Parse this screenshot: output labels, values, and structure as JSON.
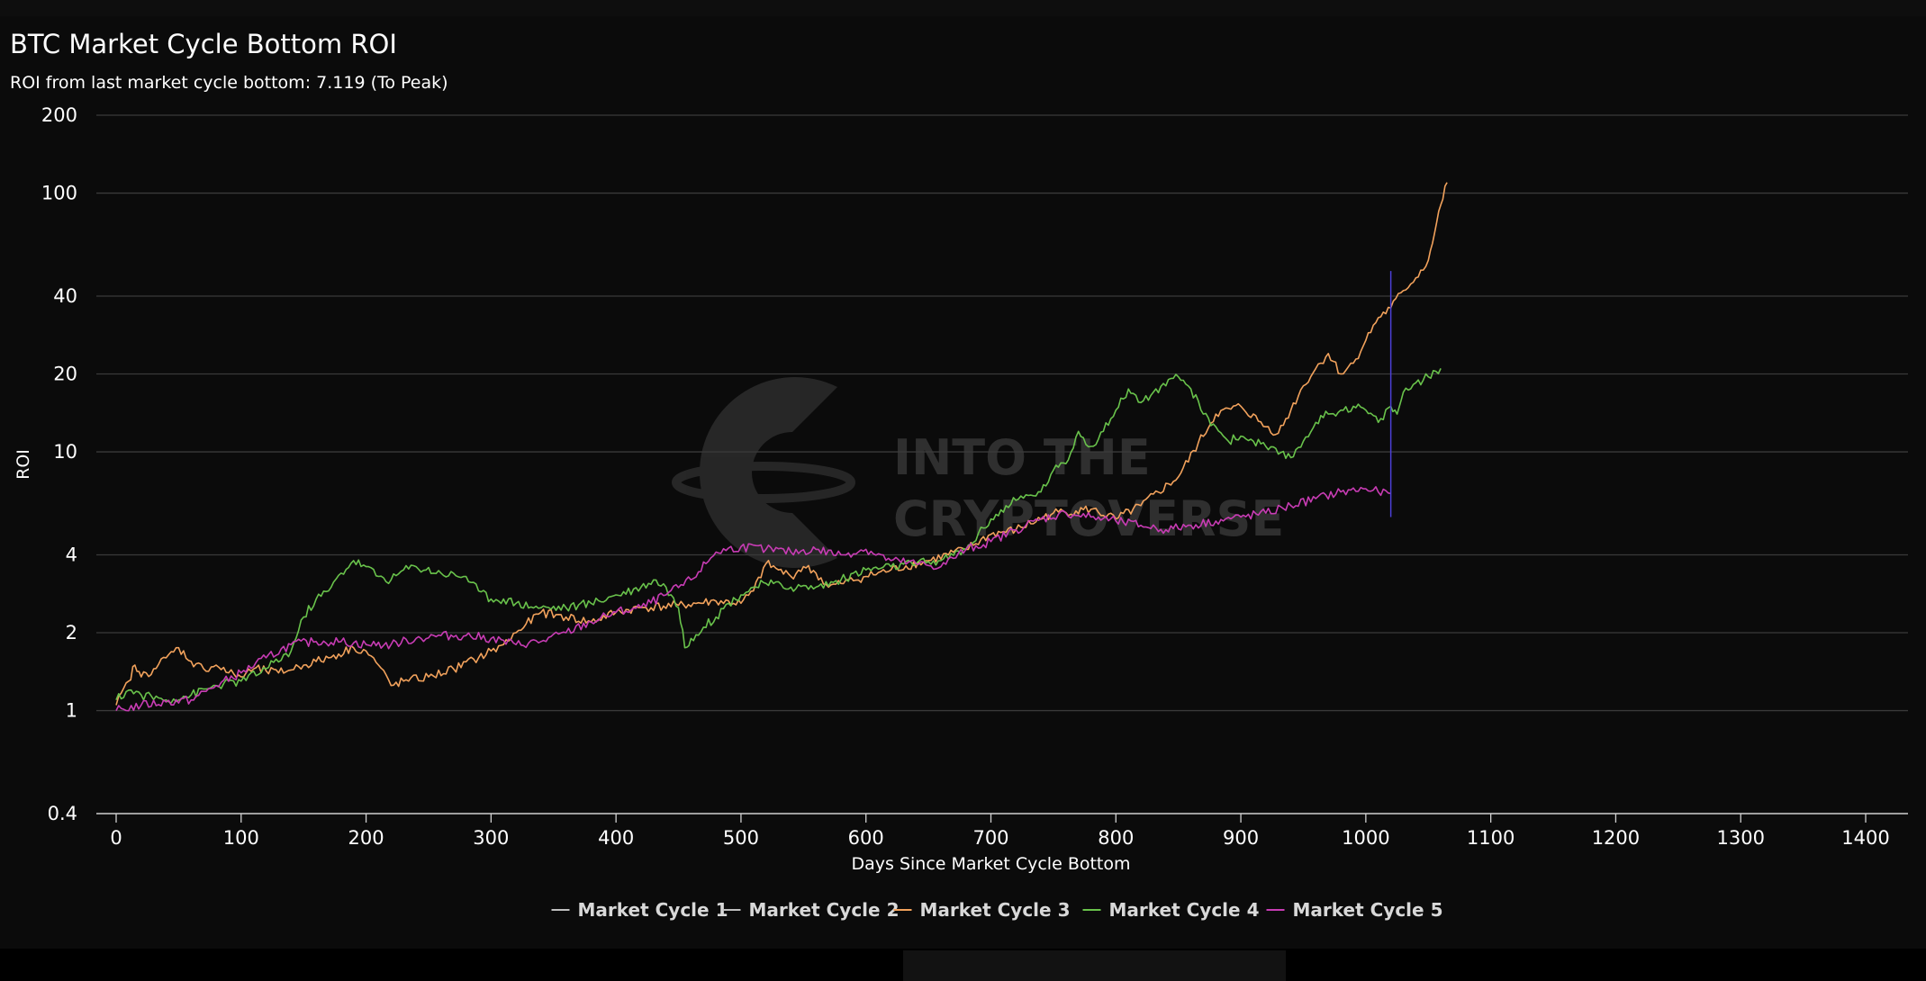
{
  "chart_data": {
    "type": "line",
    "title": "BTC Market Cycle Bottom ROI",
    "subtitle": "ROI from last market cycle bottom: 7.119 (To Peak)",
    "xlabel": "Days Since Market Cycle Bottom",
    "ylabel": "ROI",
    "xlim": [
      0,
      1400
    ],
    "ylim": [
      0.4,
      200
    ],
    "y_scale": "log",
    "x_ticks": [
      "0",
      "100",
      "200",
      "300",
      "400",
      "500",
      "600",
      "700",
      "800",
      "900",
      "1000",
      "1100",
      "1200",
      "1300",
      "1400"
    ],
    "y_ticks": [
      "0.4",
      "1",
      "2",
      "4",
      "10",
      "20",
      "40",
      "100",
      "200"
    ],
    "grid": "horizontal",
    "legend_position": "bottom",
    "marker_day": 1020,
    "marker_color": "#4b3fd8",
    "watermark": "INTO THE CRYPTOVERSE",
    "series": [
      {
        "name": "Market Cycle 1",
        "color": "#bfbfbf",
        "x": [],
        "y": []
      },
      {
        "name": "Market Cycle 2",
        "color": "#bfbfbf",
        "x": [],
        "y": []
      },
      {
        "name": "Market Cycle 3",
        "color": "#f2a25c",
        "x": [
          0,
          10,
          15,
          20,
          30,
          40,
          50,
          60,
          70,
          80,
          90,
          100,
          110,
          130,
          150,
          170,
          190,
          200,
          210,
          220,
          230,
          250,
          270,
          290,
          300,
          310,
          320,
          340,
          360,
          380,
          400,
          420,
          450,
          480,
          500,
          510,
          520,
          530,
          540,
          550,
          560,
          570,
          580,
          600,
          620,
          650,
          680,
          700,
          720,
          750,
          780,
          800,
          820,
          850,
          880,
          900,
          920,
          930,
          940,
          950,
          960,
          970,
          980,
          990,
          1000,
          1010,
          1020,
          1030,
          1040,
          1050,
          1055,
          1060,
          1065
        ],
        "y": [
          1.05,
          1.3,
          1.5,
          1.35,
          1.45,
          1.6,
          1.75,
          1.55,
          1.45,
          1.5,
          1.4,
          1.35,
          1.45,
          1.4,
          1.5,
          1.6,
          1.75,
          1.7,
          1.5,
          1.25,
          1.3,
          1.35,
          1.45,
          1.6,
          1.7,
          1.8,
          2.0,
          2.4,
          2.3,
          2.2,
          2.4,
          2.5,
          2.55,
          2.65,
          2.6,
          2.9,
          3.7,
          3.5,
          3.3,
          3.6,
          3.4,
          3.0,
          3.1,
          3.3,
          3.5,
          3.8,
          4.2,
          4.8,
          5.0,
          5.8,
          6.0,
          5.5,
          6.2,
          8.0,
          14.0,
          15.0,
          12.5,
          11.8,
          14.5,
          18.0,
          21.0,
          24.0,
          20.0,
          22.0,
          27.0,
          33.0,
          36.0,
          42.0,
          47.0,
          55.0,
          70.0,
          90.0,
          110.0
        ]
      },
      {
        "name": "Market Cycle 4",
        "color": "#69c24b",
        "x": [
          0,
          10,
          20,
          40,
          60,
          80,
          100,
          120,
          140,
          150,
          160,
          170,
          180,
          190,
          200,
          210,
          220,
          230,
          240,
          260,
          280,
          290,
          300,
          310,
          320,
          340,
          360,
          380,
          400,
          420,
          430,
          440,
          450,
          455,
          460,
          470,
          480,
          490,
          500,
          510,
          520,
          540,
          560,
          580,
          600,
          620,
          640,
          660,
          680,
          700,
          720,
          740,
          750,
          760,
          770,
          780,
          790,
          800,
          810,
          820,
          830,
          840,
          850,
          860,
          870,
          880,
          890,
          900,
          910,
          920,
          930,
          940,
          950,
          960,
          970,
          980,
          990,
          1000,
          1010,
          1020,
          1025,
          1030,
          1040,
          1050,
          1060
        ],
        "y": [
          1.1,
          1.2,
          1.15,
          1.1,
          1.15,
          1.25,
          1.3,
          1.45,
          1.7,
          2.3,
          2.7,
          2.9,
          3.4,
          3.8,
          3.6,
          3.3,
          3.2,
          3.5,
          3.6,
          3.4,
          3.3,
          2.9,
          2.7,
          2.7,
          2.6,
          2.5,
          2.5,
          2.6,
          2.8,
          3.0,
          3.2,
          3.0,
          2.5,
          1.75,
          1.9,
          2.1,
          2.3,
          2.6,
          2.8,
          3.0,
          3.1,
          3.0,
          3.0,
          3.2,
          3.5,
          3.6,
          3.7,
          3.8,
          4.2,
          5.5,
          6.5,
          7.0,
          8.5,
          9.0,
          12.0,
          10.5,
          12.0,
          14.5,
          17.5,
          15.5,
          17.0,
          18.0,
          19.5,
          17.5,
          14.0,
          12.5,
          11.0,
          11.5,
          11.0,
          10.5,
          9.8,
          9.5,
          11.0,
          13.0,
          14.0,
          14.5,
          15.0,
          14.5,
          13.0,
          15.0,
          14.0,
          17.0,
          18.5,
          19.5,
          21.0
        ]
      },
      {
        "name": "Market Cycle 5",
        "color": "#c83cb4",
        "x": [
          0,
          20,
          40,
          60,
          80,
          100,
          120,
          140,
          160,
          180,
          200,
          220,
          240,
          260,
          280,
          300,
          320,
          340,
          360,
          380,
          400,
          420,
          440,
          460,
          480,
          500,
          520,
          540,
          560,
          580,
          600,
          620,
          640,
          660,
          680,
          700,
          720,
          740,
          760,
          780,
          800,
          820,
          840,
          860,
          880,
          900,
          920,
          940,
          960,
          980,
          1000,
          1010,
          1020
        ],
        "y": [
          1.0,
          1.05,
          1.08,
          1.1,
          1.25,
          1.4,
          1.6,
          1.8,
          1.85,
          1.85,
          1.8,
          1.8,
          1.9,
          1.95,
          1.95,
          1.9,
          1.8,
          1.85,
          2.0,
          2.2,
          2.4,
          2.5,
          2.8,
          3.2,
          4.1,
          4.3,
          4.2,
          4.1,
          4.2,
          4.0,
          4.2,
          3.8,
          3.7,
          3.6,
          4.2,
          4.5,
          5.0,
          5.5,
          5.8,
          5.6,
          5.4,
          5.2,
          5.0,
          5.2,
          5.4,
          5.6,
          5.8,
          6.2,
          6.6,
          7.0,
          7.2,
          7.0,
          6.9
        ]
      }
    ]
  }
}
